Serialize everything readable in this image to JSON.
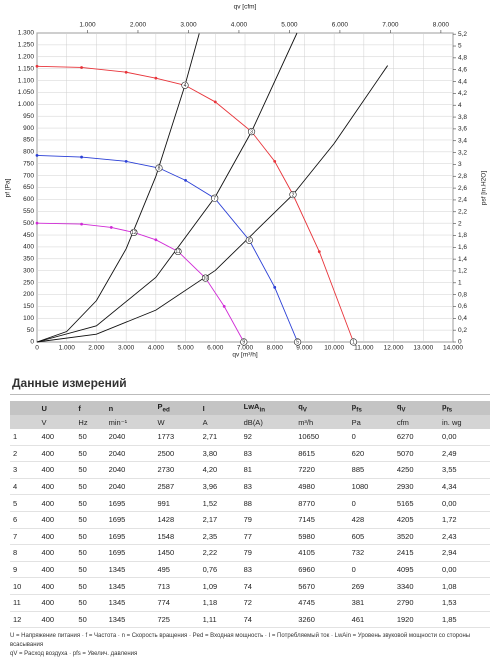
{
  "chart_data": {
    "type": "line",
    "x_label": "qv [m³/h]",
    "x2_label": "qv [cfm]",
    "y_label": "pf [Pa]",
    "y2_label": "psf [in.H2O]",
    "xlim": [
      0,
      14000
    ],
    "xticks": [
      0,
      {
        "value": 1000,
        "label": "1.000"
      },
      {
        "value": 2000,
        "label": "2.000"
      },
      {
        "value": 3000,
        "label": "3.000"
      },
      {
        "value": 4000,
        "label": "4.000"
      },
      {
        "value": 5000,
        "label": "5.000"
      },
      {
        "value": 6000,
        "label": "6.000"
      },
      {
        "value": 7000,
        "label": "7.000"
      },
      {
        "value": 8000,
        "label": "8.000"
      },
      {
        "value": 9000,
        "label": "9.000"
      },
      {
        "value": 10000,
        "label": "10.000"
      },
      {
        "value": 11000,
        "label": "11.000"
      },
      {
        "value": 12000,
        "label": "12.000"
      },
      {
        "value": 13000,
        "label": "13.000"
      },
      {
        "value": 14000,
        "label": "14.000"
      }
    ],
    "x2lim": [
      0,
      8240
    ],
    "x2ticks": [
      {
        "value": 1000,
        "label": "1.000"
      },
      {
        "value": 2000,
        "label": "2.000"
      },
      {
        "value": 3000,
        "label": "3.000"
      },
      {
        "value": 4000,
        "label": "4.000"
      },
      {
        "value": 5000,
        "label": "5.000"
      },
      {
        "value": 6000,
        "label": "6.000"
      },
      {
        "value": 7000,
        "label": "7.000"
      },
      {
        "value": 8000,
        "label": "8.000"
      }
    ],
    "ylim": [
      0,
      1300
    ],
    "yticks": [
      0,
      50,
      100,
      150,
      200,
      250,
      300,
      350,
      400,
      450,
      500,
      550,
      600,
      650,
      700,
      750,
      800,
      850,
      900,
      950,
      {
        "value": 1000,
        "label": "1.000"
      },
      {
        "value": 1050,
        "label": "1.050"
      },
      {
        "value": 1100,
        "label": "1.100"
      },
      {
        "value": 1150,
        "label": "1.150"
      },
      {
        "value": 1200,
        "label": "1.200"
      },
      {
        "value": 1250,
        "label": "1.250"
      },
      {
        "value": 1300,
        "label": "1.300"
      }
    ],
    "y2lim": [
      0,
      5.22
    ],
    "y2ticks": [
      0,
      {
        "value": 0.2,
        "label": "0,2"
      },
      {
        "value": 0.4,
        "label": "0,4"
      },
      {
        "value": 0.6,
        "label": "0,6"
      },
      {
        "value": 0.8,
        "label": "0,8"
      },
      1,
      {
        "value": 1.2,
        "label": "1,2"
      },
      {
        "value": 1.4,
        "label": "1,4"
      },
      {
        "value": 1.6,
        "label": "1,6"
      },
      {
        "value": 1.8,
        "label": "1,8"
      },
      2,
      {
        "value": 2.2,
        "label": "2,2"
      },
      {
        "value": 2.4,
        "label": "2,4"
      },
      {
        "value": 2.6,
        "label": "2,6"
      },
      {
        "value": 2.8,
        "label": "2,8"
      },
      3,
      {
        "value": 3.2,
        "label": "3,2"
      },
      {
        "value": 3.4,
        "label": "3,4"
      },
      {
        "value": 3.6,
        "label": "3,6"
      },
      {
        "value": 3.8,
        "label": "3,8"
      },
      4,
      {
        "value": 4.2,
        "label": "4,2"
      },
      {
        "value": 4.4,
        "label": "4,4"
      },
      {
        "value": 4.6,
        "label": "4,6"
      },
      {
        "value": 4.8,
        "label": "4,8"
      },
      5,
      {
        "value": 5.2,
        "label": "5,2"
      }
    ],
    "grid": true,
    "series": [
      {
        "color": "#e8343a",
        "markers": true,
        "x": [
          0,
          1500,
          3000,
          4000,
          4980,
          6000,
          7220,
          8000,
          8615,
          9500,
          10650
        ],
        "values": [
          1160,
          1155,
          1135,
          1110,
          1080,
          1010,
          885,
          760,
          620,
          380,
          0
        ]
      },
      {
        "color": "#2a3fd6",
        "markers": true,
        "x": [
          0,
          1500,
          3000,
          4105,
          5000,
          5980,
          7145,
          8000,
          8770
        ],
        "values": [
          785,
          778,
          760,
          732,
          680,
          605,
          428,
          230,
          0
        ]
      },
      {
        "color": "#d02ad6",
        "markers": true,
        "x": [
          0,
          1500,
          2500,
          3260,
          4000,
          4745,
          5670,
          6300,
          6960
        ],
        "values": [
          500,
          496,
          482,
          461,
          430,
          381,
          269,
          150,
          0
        ]
      },
      {
        "color": "#111111",
        "markers": false,
        "x": [
          0,
          1000,
          2000,
          3000,
          4000,
          4980,
          5460
        ],
        "values": [
          0,
          44,
          174,
          392,
          697,
          1080,
          1298
        ]
      },
      {
        "color": "#111111",
        "markers": false,
        "x": [
          0,
          2000,
          4000,
          6000,
          7220,
          8750
        ],
        "values": [
          0,
          68,
          272,
          611,
          885,
          1300
        ]
      },
      {
        "color": "#111111",
        "markers": false,
        "x": [
          0,
          2000,
          4000,
          6000,
          8615,
          10000,
          11800
        ],
        "values": [
          0,
          33,
          134,
          301,
          620,
          835,
          1163
        ]
      }
    ],
    "points": [
      {
        "label": "1",
        "x": 10650,
        "y": 0
      },
      {
        "label": "2",
        "x": 8615,
        "y": 620
      },
      {
        "label": "3",
        "x": 7220,
        "y": 885
      },
      {
        "label": "4",
        "x": 4980,
        "y": 1080
      },
      {
        "label": "5",
        "x": 8770,
        "y": 0
      },
      {
        "label": "6",
        "x": 7145,
        "y": 428
      },
      {
        "label": "7",
        "x": 5980,
        "y": 605
      },
      {
        "label": "8",
        "x": 4105,
        "y": 732
      },
      {
        "label": "9",
        "x": 6960,
        "y": 0
      },
      {
        "label": "10",
        "x": 5670,
        "y": 269
      },
      {
        "label": "11",
        "x": 4745,
        "y": 381
      },
      {
        "label": "12",
        "x": 3260,
        "y": 461
      }
    ]
  },
  "table": {
    "title": "Данные измерений",
    "symbols": [
      "U",
      "f",
      "n",
      {
        "text": "P",
        "sub": "ed"
      },
      "I",
      {
        "text": "LwA",
        "sub": "in"
      },
      {
        "text": "q",
        "sub": "V"
      },
      {
        "text": "p",
        "sub": "fs"
      },
      {
        "text": "q",
        "sub": "V"
      },
      {
        "text": "p",
        "sub": "fs"
      }
    ],
    "units": [
      "V",
      "Hz",
      "min⁻¹",
      "W",
      "A",
      "dB(A)",
      "m³/h",
      "Pa",
      "cfm",
      "in. wg"
    ],
    "rows": [
      [
        "1",
        "400",
        "50",
        "2040",
        "1773",
        "2,71",
        "92",
        "10650",
        "0",
        "6270",
        "0,00"
      ],
      [
        "2",
        "400",
        "50",
        "2040",
        "2500",
        "3,80",
        "83",
        "8615",
        "620",
        "5070",
        "2,49"
      ],
      [
        "3",
        "400",
        "50",
        "2040",
        "2730",
        "4,20",
        "81",
        "7220",
        "885",
        "4250",
        "3,55"
      ],
      [
        "4",
        "400",
        "50",
        "2040",
        "2587",
        "3,96",
        "83",
        "4980",
        "1080",
        "2930",
        "4,34"
      ],
      [
        "5",
        "400",
        "50",
        "1695",
        "991",
        "1,52",
        "88",
        "8770",
        "0",
        "5165",
        "0,00"
      ],
      [
        "6",
        "400",
        "50",
        "1695",
        "1428",
        "2,17",
        "79",
        "7145",
        "428",
        "4205",
        "1,72"
      ],
      [
        "7",
        "400",
        "50",
        "1695",
        "1548",
        "2,35",
        "77",
        "5980",
        "605",
        "3520",
        "2,43"
      ],
      [
        "8",
        "400",
        "50",
        "1695",
        "1450",
        "2,22",
        "79",
        "4105",
        "732",
        "2415",
        "2,94"
      ],
      [
        "9",
        "400",
        "50",
        "1345",
        "495",
        "0,76",
        "83",
        "6960",
        "0",
        "4095",
        "0,00"
      ],
      [
        "10",
        "400",
        "50",
        "1345",
        "713",
        "1,09",
        "74",
        "5670",
        "269",
        "3340",
        "1,08"
      ],
      [
        "11",
        "400",
        "50",
        "1345",
        "774",
        "1,18",
        "72",
        "4745",
        "381",
        "2790",
        "1,53"
      ],
      [
        "12",
        "400",
        "50",
        "1345",
        "725",
        "1,11",
        "74",
        "3260",
        "461",
        "1920",
        "1,85"
      ]
    ],
    "notes": [
      "U = Напряжение питания · f = Частота · n = Скорость вращения · Ped = Входная мощность · I = Потребляемый ток · LwAin = Уровень звуковой мощности со стороны всасывания",
      "qV = Расход воздуха · pfs = Увелич. давления"
    ]
  }
}
